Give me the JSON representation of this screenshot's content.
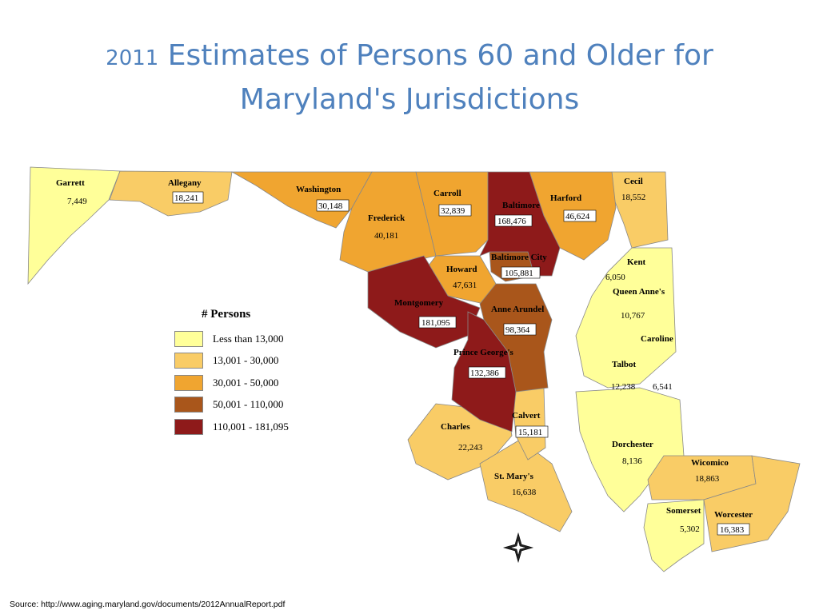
{
  "title": {
    "year": "2011",
    "rest": "Estimates of Persons 60 and Older for",
    "line2": "Maryland's Jurisdictions"
  },
  "legend": {
    "title": "# Persons",
    "items": [
      {
        "label": "Less than 13,000",
        "color": "#ffff99"
      },
      {
        "label": "13,001 - 30,000",
        "color": "#f9cc66"
      },
      {
        "label": "30,001 - 50,000",
        "color": "#f0a530"
      },
      {
        "label": "50,001 - 110,000",
        "color": "#a9561b"
      },
      {
        "label": "110,001 - 181,095",
        "color": "#8e1a1a"
      }
    ]
  },
  "counties": {
    "garrett": {
      "name": "Garrett",
      "value": "7,449"
    },
    "allegany": {
      "name": "Allegany",
      "value": "18,241"
    },
    "washington": {
      "name": "Washington",
      "value": "30,148"
    },
    "frederick": {
      "name": "Frederick",
      "value": "40,181"
    },
    "carroll": {
      "name": "Carroll",
      "value": "32,839"
    },
    "baltimore": {
      "name": "Baltimore",
      "value": "168,476"
    },
    "harford": {
      "name": "Harford",
      "value": "46,624"
    },
    "cecil": {
      "name": "Cecil",
      "value": "18,552"
    },
    "baltimore_city": {
      "name": "Baltimore City",
      "value": "105,881"
    },
    "howard": {
      "name": "Howard",
      "value": "47,631"
    },
    "montgomery": {
      "name": "Montgomery",
      "value": "181,095"
    },
    "anne_arundel": {
      "name": "Anne Arundel",
      "value": "98,364"
    },
    "prince_georges": {
      "name": "Prince George's",
      "value": "132,386"
    },
    "charles": {
      "name": "Charles",
      "value": "22,243"
    },
    "calvert": {
      "name": "Calvert",
      "value": "15,181"
    },
    "st_marys": {
      "name": "St. Mary's",
      "value": "16,638"
    },
    "kent": {
      "name": "Kent",
      "value": "6,050"
    },
    "queen_annes": {
      "name": "Queen Anne's",
      "value": "10,767"
    },
    "caroline": {
      "name": "Caroline",
      "value": "6,541"
    },
    "talbot": {
      "name": "Talbot",
      "value": "12,238"
    },
    "dorchester": {
      "name": "Dorchester",
      "value": "8,136"
    },
    "wicomico": {
      "name": "Wicomico",
      "value": "18,863"
    },
    "somerset": {
      "name": "Somerset",
      "value": "5,302"
    },
    "worcester": {
      "name": "Worcester",
      "value": "16,383"
    }
  },
  "source": "Source: http://www.aging.maryland.gov/documents/2012AnnualReport.pdf"
}
